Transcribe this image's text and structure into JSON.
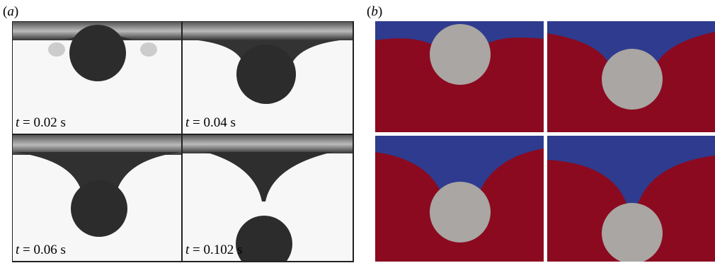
{
  "panel_a": {
    "label": "(a)",
    "times": [
      "t = 0.02 s",
      "t = 0.04 s",
      "t = 0.06 s",
      "t = 0.102 s"
    ]
  },
  "panel_b": {
    "label": "(b)"
  }
}
